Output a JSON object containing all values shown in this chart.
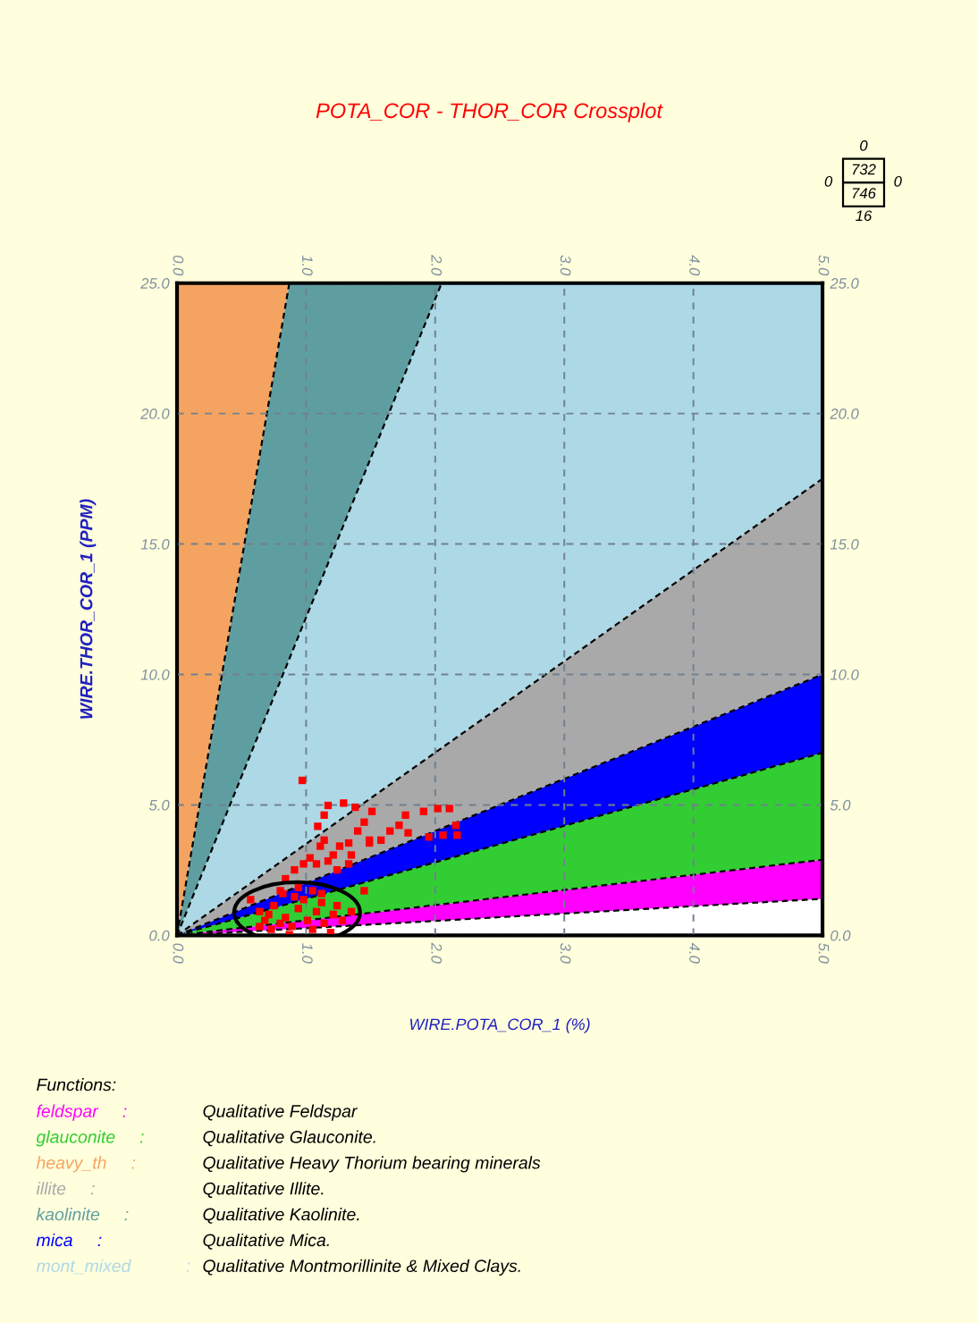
{
  "chart_data": {
    "type": "scatter",
    "title": "POTA_COR - THOR_COR Crossplot",
    "xlabel": "WIRE.POTA_COR_1 (%)",
    "ylabel": "WIRE.THOR_COR_1 (PPM)",
    "legend_title": "Functions:",
    "xlim": [
      0,
      5
    ],
    "ylim": [
      0,
      25
    ],
    "x2lim": [
      0,
      5
    ],
    "y2lim": [
      0,
      25
    ],
    "xticks": [
      {
        "value": 0,
        "label": "0.0"
      },
      {
        "value": 1,
        "label": "1.0"
      },
      {
        "value": 2,
        "label": "2.0"
      },
      {
        "value": 3,
        "label": "3.0"
      },
      {
        "value": 4,
        "label": "4.0"
      },
      {
        "value": 5,
        "label": "5.0"
      }
    ],
    "x2ticks": [
      {
        "value": 0,
        "label": "0.0"
      },
      {
        "value": 1,
        "label": "1.0"
      },
      {
        "value": 2,
        "label": "2.0"
      },
      {
        "value": 3,
        "label": "3.0"
      },
      {
        "value": 4,
        "label": "4.0"
      },
      {
        "value": 5,
        "label": "5.0"
      }
    ],
    "yticks": [
      {
        "value": 0,
        "label": "0.0"
      },
      {
        "value": 5,
        "label": "5.0"
      },
      {
        "value": 10,
        "label": "10.0"
      },
      {
        "value": 15,
        "label": "15.0"
      },
      {
        "value": 20,
        "label": "20.0"
      },
      {
        "value": 25,
        "label": "25.0"
      }
    ],
    "y2ticks": [
      {
        "value": 0,
        "label": "0.0"
      },
      {
        "value": 5,
        "label": "5.0"
      },
      {
        "value": 10,
        "label": "10.0"
      },
      {
        "value": 15,
        "label": "15.0"
      },
      {
        "value": 20,
        "label": "20.0"
      },
      {
        "value": 25,
        "label": "25.0"
      }
    ],
    "grid": true,
    "stacked": true,
    "series": [
      {
        "type": "area",
        "color": "#ffffff",
        "x": [
          0,
          0.87,
          2.05,
          5
        ],
        "values": [
          0,
          0.24,
          0.57,
          1.4
        ]
      },
      {
        "name": "feldspar",
        "type": "area",
        "color": "#ff00ff",
        "x": [
          0,
          0.87,
          2.05,
          5
        ],
        "values": [
          0,
          0.26,
          0.62,
          1.5
        ]
      },
      {
        "name": "glauconite",
        "type": "area",
        "color": "#32cd32",
        "x": [
          0,
          0.87,
          2.05,
          5
        ],
        "values": [
          0,
          0.72,
          1.68,
          4.1
        ]
      },
      {
        "name": "mica",
        "type": "area",
        "color": "#0000ff",
        "x": [
          0,
          0.87,
          2.05,
          5
        ],
        "values": [
          0,
          0.52,
          1.23,
          3
        ]
      },
      {
        "name": "illite",
        "type": "area",
        "color": "#a9a9a9",
        "x": [
          0,
          0.87,
          2.05,
          5
        ],
        "values": [
          0,
          1.31,
          3.08,
          7.5
        ]
      },
      {
        "name": "mont_mixed",
        "type": "area",
        "color": "#add8e6",
        "x": [
          0,
          0.87,
          2.05,
          5
        ],
        "values": [
          0,
          7.55,
          17.82,
          7.5
        ]
      },
      {
        "name": "kaolinite",
        "type": "area",
        "color": "#5f9ea0",
        "x": [
          0,
          0.87,
          2.05
        ],
        "values": [
          0,
          14.4,
          0
        ]
      },
      {
        "name": "heavy_th",
        "type": "area",
        "color": "#f4a460",
        "x": [
          0,
          0.87
        ],
        "values": [
          25,
          0
        ]
      },
      {
        "color": "#ff0000",
        "marker": "square",
        "x": [
          0.97,
          1.17,
          1.29,
          1.38,
          1.51,
          1.45,
          1.09,
          1.14,
          1.77,
          1.91,
          2.02,
          2.11,
          2.16,
          2.06,
          1.95,
          2.17,
          1.72,
          1.79,
          1.65,
          1.58,
          1.49,
          1.4,
          1.33,
          1.26,
          1.21,
          1.14,
          1.11,
          1.03,
          0.98,
          0.91,
          1.08,
          1.17,
          1.24,
          0.84,
          0.8,
          1.33,
          1.35,
          1.45,
          1.49,
          0.57,
          0.64,
          0.68,
          0.73,
          0.75,
          0.82,
          0.84,
          0.89,
          0.94,
          0.98,
          1.01,
          1.05,
          1.08,
          1.12,
          1.14,
          1.19,
          1.21,
          1.24,
          1.28,
          1.05,
          0.94,
          0.71,
          0.8,
          0.87,
          0.64,
          0.91,
          1.12,
          1.35
        ],
        "values": [
          5.94,
          4.98,
          5.07,
          4.91,
          4.75,
          4.34,
          4.18,
          4.61,
          4.61,
          4.75,
          4.86,
          4.86,
          4.22,
          3.84,
          3.77,
          3.84,
          4.22,
          3.93,
          4.0,
          3.65,
          3.65,
          4.0,
          3.54,
          3.42,
          3.08,
          3.65,
          3.42,
          2.97,
          2.74,
          2.51,
          2.74,
          2.85,
          2.51,
          2.17,
          1.71,
          2.74,
          3.08,
          1.71,
          3.54,
          1.37,
          0.91,
          0.57,
          0.23,
          1.14,
          1.6,
          0.68,
          0.34,
          1.03,
          1.37,
          0.57,
          0.23,
          0.91,
          1.26,
          0.46,
          0.11,
          0.8,
          1.14,
          0.57,
          1.71,
          1.83,
          0.8,
          0.46,
          0.02,
          0.34,
          1.48,
          1.6,
          0.91
        ]
      }
    ],
    "annotations": [
      "Qualitative Feldspar",
      "Qualitative Glauconite.",
      "Qualitative Heavy Thorium bearing minerals",
      "Qualitative Illite.",
      "Qualitative Kaolinite.",
      "Qualitative Mica.",
      "Qualitative Montmorillinite & Mixed Clays.",
      ":",
      ":",
      ":",
      ":",
      ":",
      ":",
      ":",
      "0",
      "0",
      "732",
      "746",
      "0",
      "16"
    ]
  }
}
